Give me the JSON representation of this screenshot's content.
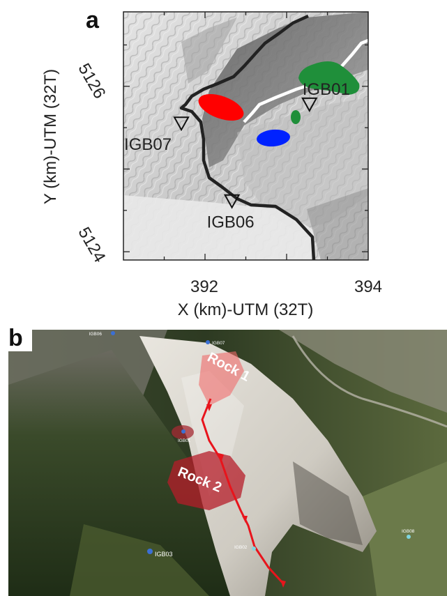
{
  "panel_a": {
    "label": "a",
    "xlabel": "X (km)-UTM (32T)",
    "ylabel": "Y (km)-UTM (32T)",
    "x_range_km": [
      391,
      394
    ],
    "y_range_km": [
      5123.9,
      5126.9
    ],
    "x_ticks": [
      "392",
      "394"
    ],
    "y_ticks": [
      "5126",
      "5124"
    ],
    "stations": [
      {
        "name": "IGB01",
        "x": 393.28,
        "y": 5125.78
      },
      {
        "name": "IGB07",
        "x": 391.71,
        "y": 5125.55
      },
      {
        "name": "IGB06",
        "x": 392.33,
        "y": 5124.61
      }
    ],
    "colors": {
      "rock_red": "#ff0000",
      "rock_blue": "#0022ff",
      "rock_green": "#1f8f3a",
      "boundary": "#222222",
      "ridge": "#ffffff"
    }
  },
  "panel_b": {
    "label": "b",
    "rock_labels": [
      "Rock 1",
      "Rock 2"
    ],
    "stations": [
      "IGB06",
      "IGB07",
      "IGB01",
      "IGB02",
      "IGB03",
      "IGB08"
    ],
    "colors": {
      "path": "#e8141c",
      "rock1_area": "#f06a6a",
      "rock2_area": "#b51e2a"
    }
  }
}
